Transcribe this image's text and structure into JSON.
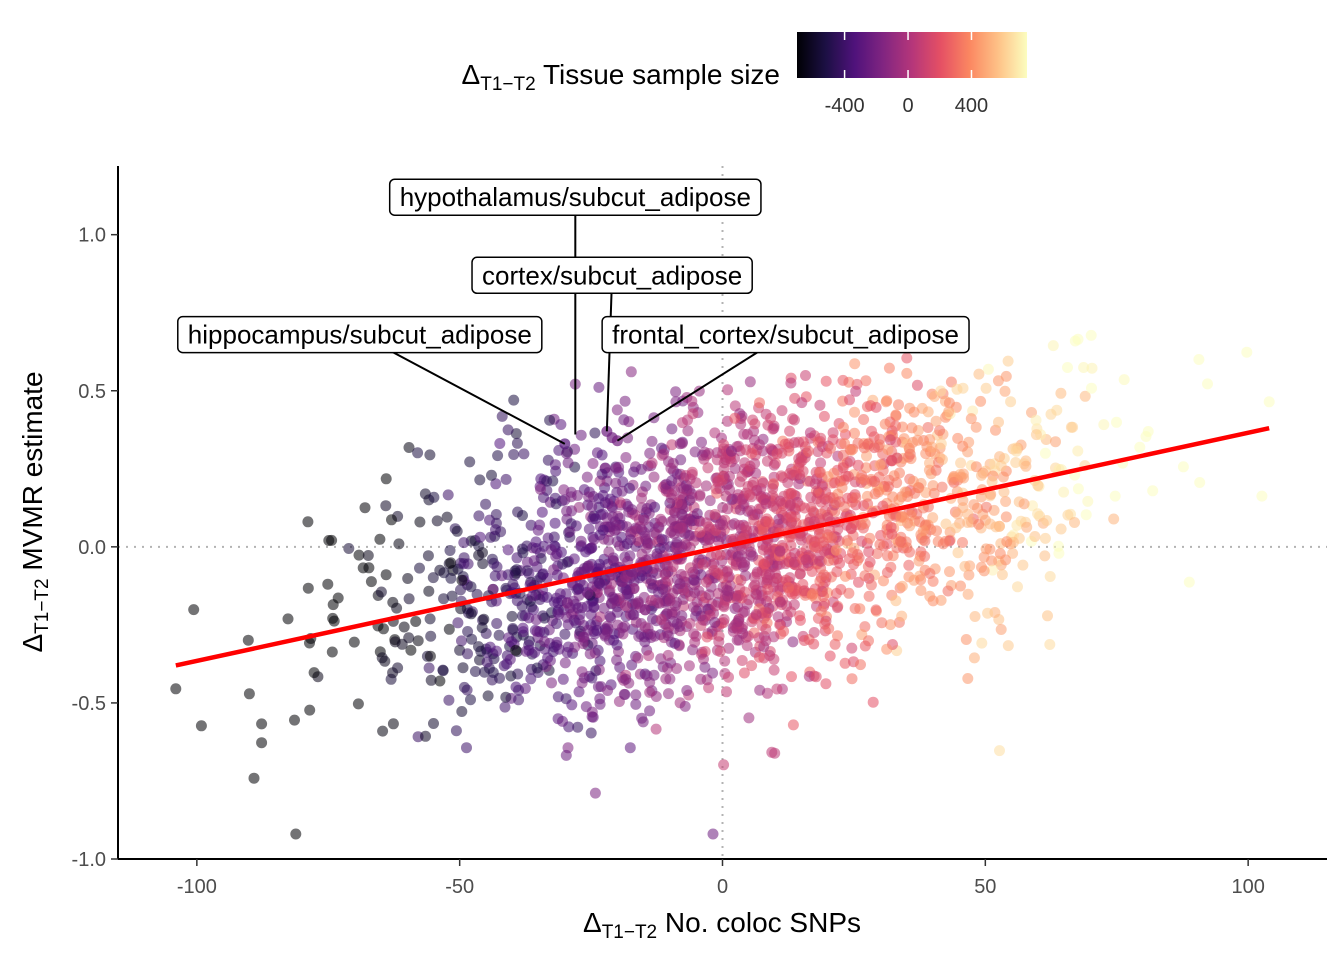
{
  "chart_data": {
    "type": "scatter",
    "x_axis": {
      "delta": "Δ",
      "subscript": "T1−T2",
      "label": " No. coloc SNPs"
    },
    "y_axis": {
      "delta": "Δ",
      "subscript": "T1−T2",
      "label": " MVMR estimate"
    },
    "xlim": [
      -115,
      115
    ],
    "ylim": [
      -1.0,
      1.22
    ],
    "x_ticks": [
      -100,
      -50,
      0,
      50,
      100
    ],
    "x_tick_labels": [
      "-100",
      "-50",
      "0",
      "50",
      "100"
    ],
    "y_ticks": [
      -1.0,
      -0.5,
      0.0,
      0.5,
      1.0
    ],
    "y_tick_labels": [
      "-1.0",
      "-0.5",
      "0.0",
      "0.5",
      "1.0"
    ],
    "reference_lines": {
      "x": 0,
      "y": 0,
      "style": "dotted grey"
    },
    "grid": false,
    "legend": {
      "position": "top",
      "delta": "Δ",
      "subscript": "T1−T2",
      "title": " Tissue sample size",
      "ticks": [
        -400,
        0,
        400
      ],
      "tick_labels": [
        "-400",
        "0",
        "400"
      ],
      "range": [
        -700,
        750
      ],
      "colormap": "magma",
      "colors": [
        "#000004",
        "#1c1044",
        "#4f127b",
        "#812581",
        "#b5367a",
        "#e55064",
        "#fb8761",
        "#fec287",
        "#fcfdbf"
      ]
    },
    "trend_line": {
      "x": [
        -104,
        104
      ],
      "y": [
        -0.38,
        0.38
      ],
      "color": "#ff0000"
    },
    "point_generation": {
      "n": 2400,
      "x_sd": 30,
      "noise_sd": 0.22,
      "intercept": 0.0,
      "slope": 0.00365,
      "x_range": [
        -104,
        104
      ],
      "y_range": [
        -0.92,
        0.92
      ],
      "seed": 7
    },
    "highlighted_points": [
      {
        "x": -30,
        "y": 0.33
      },
      {
        "x": -22,
        "y": 0.37
      },
      {
        "x": -21,
        "y": 0.35
      },
      {
        "x": -20,
        "y": 0.34
      }
    ],
    "annotations": [
      {
        "label": "hypothalamus/subcut_adipose",
        "x": -28,
        "y": 1.12,
        "px": -28,
        "py": 0.36
      },
      {
        "label": "cortex/subcut_adipose",
        "x": -21,
        "y": 0.87,
        "px": -22,
        "py": 0.37
      },
      {
        "label": "hippocampus/subcut_adipose",
        "x": -69,
        "y": 0.68,
        "px": -30,
        "py": 0.33
      },
      {
        "label": "frontal_cortex/subcut_adipose",
        "x": 12,
        "y": 0.68,
        "px": -20,
        "py": 0.34
      }
    ]
  }
}
